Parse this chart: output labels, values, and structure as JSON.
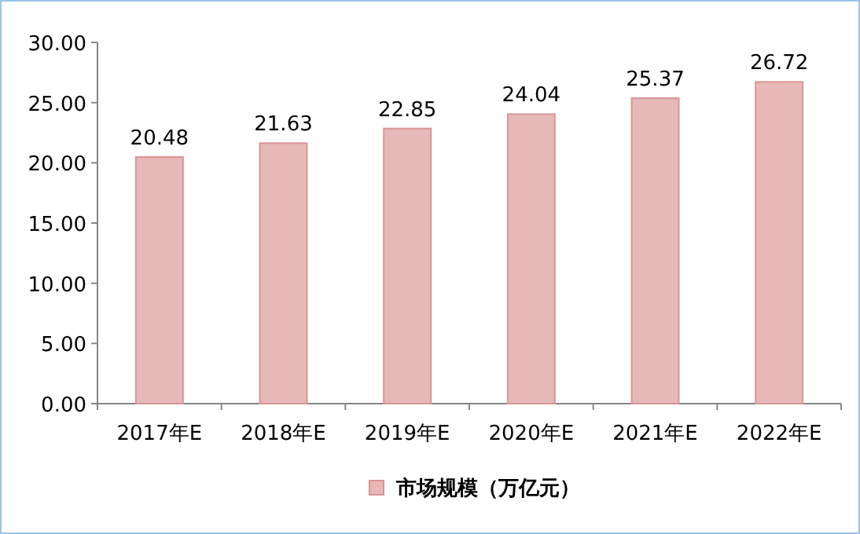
{
  "chart_data": {
    "type": "bar",
    "categories": [
      "2017年E",
      "2018年E",
      "2019年E",
      "2020年E",
      "2021年E",
      "2022年E"
    ],
    "series": [
      {
        "name": "市场规模（万亿元）",
        "color": "#e6b9b8",
        "values": [
          20.48,
          21.63,
          22.85,
          24.04,
          25.37,
          26.72
        ]
      }
    ],
    "ylim": [
      0,
      30
    ],
    "yticks": [
      {
        "value": 0,
        "label": "0.00"
      },
      {
        "value": 5,
        "label": "5.00"
      },
      {
        "value": 10,
        "label": "10.00"
      },
      {
        "value": 15,
        "label": "15.00"
      },
      {
        "value": 20,
        "label": "20.00"
      },
      {
        "value": 25,
        "label": "25.00"
      },
      {
        "value": 30,
        "label": "30.00"
      }
    ],
    "data_labels": true,
    "legend": "bottom"
  }
}
